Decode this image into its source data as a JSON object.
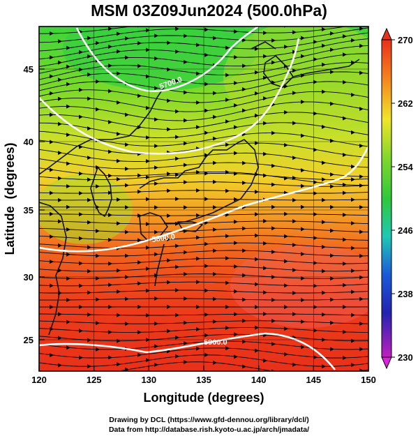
{
  "title": "MSM 03Z09Jun2024 (500.0hPa)",
  "x_axis": {
    "label": "Longitude (degrees)",
    "ticks": [
      "120",
      "125",
      "130",
      "135",
      "140",
      "145",
      "150"
    ],
    "range": [
      120,
      150
    ]
  },
  "y_axis": {
    "label": "Latitude  (degrees)",
    "ticks": [
      "25",
      "30",
      "35",
      "40",
      "45"
    ],
    "range": [
      22.4,
      47.6
    ]
  },
  "colorbar": {
    "ticks": [
      "270",
      "262",
      "254",
      "246",
      "238",
      "230"
    ],
    "range": [
      230,
      270
    ],
    "unit": ""
  },
  "contours": [
    {
      "label": "5700.0"
    },
    {
      "label": "5800.0"
    },
    {
      "label": "5900.0"
    }
  ],
  "credits": {
    "line1": "Drawing by DCL (https://www.gfd-dennou.org/library/dcl/)",
    "line2": "Data from http://database.rish.kyoto-u.ac.jp/arch/jmadata/"
  },
  "colors": {
    "cold": "#3fd43a",
    "mid": "#e8e82a",
    "warm": "#f0401c",
    "contour": "#ffffff",
    "coast": "#111111"
  }
}
